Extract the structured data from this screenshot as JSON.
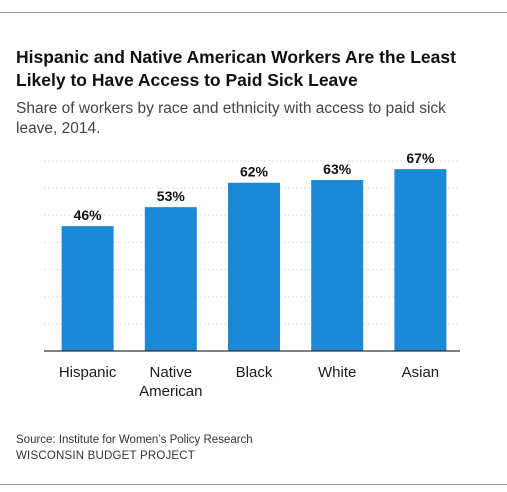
{
  "header": {
    "title": "Hispanic and Native American Workers Are the Least Likely to Have Access to Paid Sick Leave",
    "subtitle": "Share of workers by race and ethnicity with access to paid sick leave, 2014."
  },
  "footer": {
    "source": "Source: Institute for Women’s Policy Research",
    "organization": "WISCONSIN BUDGET PROJECT"
  },
  "chart_data": {
    "type": "bar",
    "title": "Hispanic and Native American Workers Are the Least Likely to Have Access to Paid Sick Leave",
    "subtitle": "Share of workers by race and ethnicity with access to paid sick leave, 2014.",
    "categories": [
      [
        "Hispanic"
      ],
      [
        "Native",
        "American"
      ],
      [
        "Black"
      ],
      [
        "White"
      ],
      [
        "Asian"
      ]
    ],
    "values": [
      46,
      53,
      62,
      63,
      67
    ],
    "value_labels": [
      "46%",
      "53%",
      "62%",
      "63%",
      "67%"
    ],
    "ylim": [
      0,
      70
    ],
    "grid": true,
    "legend": "none",
    "bar_color": "#1c89d6",
    "xlabel": "",
    "ylabel": ""
  }
}
